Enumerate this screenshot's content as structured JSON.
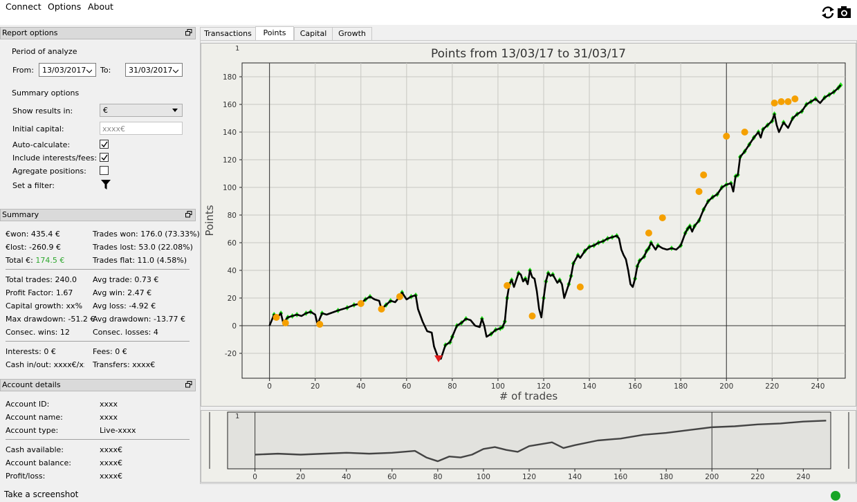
{
  "menu": {
    "connect": "Connect",
    "options": "Options",
    "about": "About"
  },
  "toolbar": {
    "refresh_icon": "refresh-icon",
    "screenshot_icon": "camera-icon"
  },
  "report_options": {
    "title": "Report options",
    "period_label": "Period of analyze",
    "from_label": "From:",
    "from_value": "13/03/2017",
    "to_label": "To:",
    "to_value": "31/03/2017",
    "summary_options_label": "Summary options",
    "show_results_label": "Show results in:",
    "show_results_value": "€",
    "initial_capital_label": "Initial capital:",
    "initial_capital_placeholder": "xxxx€",
    "auto_calculate_label": "Auto-calculate:",
    "auto_calculate_checked": true,
    "include_interests_label": "Include interests/fees:",
    "include_interests_checked": true,
    "aggregate_label": "Agregate positions:",
    "aggregate_checked": false,
    "filter_label": "Set a filter:",
    "filter_icon": "filter-icon"
  },
  "summary": {
    "title": "Summary",
    "won_label": "€won: 435.4 €",
    "lost_label": "€lost: -260.9 €",
    "total_prefix": "Total €:",
    "total_value": "174.5 €",
    "trades_won": "Trades won: 176.0 (73.33%)",
    "trades_lost": "Trades lost: 53.0 (22.08%)",
    "trades_flat": "Trades flat: 11.0 (4.58%)",
    "total_trades": "Total trades: 240.0",
    "avg_trade": "Avg trade: 0.73 €",
    "profit_factor": "Profit Factor: 1.67",
    "avg_win": "Avg win: 2.47 €",
    "capital_growth": "Capital growth: xx%",
    "avg_loss": "Avg loss: -4.92 €",
    "max_drawdown": "Max drawdown: -51.2 €",
    "avg_drawdown": "Avg drawdown: -13.77 €",
    "consec_wins": "Consec. wins: 12",
    "consec_losses": "Consec. losses: 4",
    "interests": "Interests: 0 €",
    "fees": "Fees: 0 €",
    "cash_inout": "Cash in/out: xxxx€/xxx",
    "transfers": "Transfers: xxxx€"
  },
  "account": {
    "title": "Account details",
    "id_label": "Account ID:",
    "id_value": "xxxx",
    "name_label": "Account name:",
    "name_value": "xxxx",
    "type_label": "Account type:",
    "type_value": "Live-xxxx",
    "cash_label": "Cash available:",
    "cash_value": "xxxx€",
    "balance_label": "Account balance:",
    "balance_value": "xxxx€",
    "pl_label": "Profit/loss:",
    "pl_value": "xxxx€"
  },
  "tabs": [
    "Transactions",
    "Points",
    "Capital",
    "Growth"
  ],
  "active_tab": "Points",
  "plot_corner_label": "1",
  "overview_corner_label": "1",
  "status": {
    "text": "Take a screenshot",
    "connection_color": "#18a526"
  },
  "chart_data": {
    "type": "line",
    "title": "Points from 13/03/17 to 31/03/17",
    "xlabel": "# of trades",
    "ylabel": "Points",
    "xlim": [
      -12,
      252
    ],
    "ylim": [
      -38,
      190
    ],
    "xticks": [
      0,
      20,
      40,
      60,
      80,
      100,
      120,
      140,
      160,
      180,
      200,
      220,
      240
    ],
    "yticks": [
      -20,
      0,
      20,
      40,
      60,
      80,
      100,
      120,
      140,
      160,
      180
    ],
    "vlines": [
      0,
      200
    ],
    "grid": true,
    "line_color": "#000000",
    "marker_colors": {
      "win": "#22e01a",
      "loss": "#f5a000",
      "min": "#e01b1b"
    },
    "points": [
      [
        0,
        0
      ],
      [
        2,
        8
      ],
      [
        3,
        5
      ],
      [
        5,
        9
      ],
      [
        6,
        2
      ],
      [
        8,
        6
      ],
      [
        10,
        7
      ],
      [
        12,
        8
      ],
      [
        14,
        7
      ],
      [
        16,
        9
      ],
      [
        18,
        10
      ],
      [
        20,
        8
      ],
      [
        21,
        1
      ],
      [
        23,
        9
      ],
      [
        25,
        8
      ],
      [
        30,
        11
      ],
      [
        34,
        13
      ],
      [
        37,
        15
      ],
      [
        40,
        16
      ],
      [
        42,
        19
      ],
      [
        44,
        21
      ],
      [
        46,
        19
      ],
      [
        48,
        18
      ],
      [
        49,
        12
      ],
      [
        51,
        15
      ],
      [
        53,
        18
      ],
      [
        55,
        17
      ],
      [
        57,
        21
      ],
      [
        58,
        24
      ],
      [
        60,
        19
      ],
      [
        62,
        21
      ],
      [
        64,
        22
      ],
      [
        65,
        12
      ],
      [
        67,
        3
      ],
      [
        69,
        -4
      ],
      [
        71,
        -5
      ],
      [
        72,
        -15
      ],
      [
        74,
        -24
      ],
      [
        75,
        -24
      ],
      [
        77,
        -14
      ],
      [
        79,
        -12
      ],
      [
        80,
        -8
      ],
      [
        82,
        0
      ],
      [
        84,
        2
      ],
      [
        86,
        5
      ],
      [
        88,
        4
      ],
      [
        90,
        0
      ],
      [
        92,
        -1
      ],
      [
        93,
        5
      ],
      [
        94,
        0
      ],
      [
        95,
        -8
      ],
      [
        97,
        -6
      ],
      [
        99,
        -3
      ],
      [
        101,
        -2
      ],
      [
        102,
        -1
      ],
      [
        103,
        3
      ],
      [
        104,
        20
      ],
      [
        105,
        30
      ],
      [
        106,
        33
      ],
      [
        107,
        28
      ],
      [
        109,
        38
      ],
      [
        110,
        37
      ],
      [
        111,
        32
      ],
      [
        112,
        34
      ],
      [
        113,
        30
      ],
      [
        114,
        40
      ],
      [
        115,
        35
      ],
      [
        116,
        34
      ],
      [
        117,
        25
      ],
      [
        118,
        12
      ],
      [
        119,
        6
      ],
      [
        120,
        20
      ],
      [
        121,
        32
      ],
      [
        122,
        38
      ],
      [
        123,
        36
      ],
      [
        124,
        37
      ],
      [
        126,
        31
      ],
      [
        127,
        33
      ],
      [
        128,
        30
      ],
      [
        129,
        20
      ],
      [
        131,
        30
      ],
      [
        132,
        36
      ],
      [
        133,
        45
      ],
      [
        135,
        51
      ],
      [
        136,
        49
      ],
      [
        138,
        54
      ],
      [
        140,
        57
      ],
      [
        142,
        58
      ],
      [
        144,
        60
      ],
      [
        146,
        61
      ],
      [
        148,
        63
      ],
      [
        150,
        64
      ],
      [
        152,
        65
      ],
      [
        153,
        63
      ],
      [
        154,
        55
      ],
      [
        155,
        51
      ],
      [
        156,
        48
      ],
      [
        157,
        40
      ],
      [
        158,
        30
      ],
      [
        159,
        28
      ],
      [
        160,
        34
      ],
      [
        161,
        43
      ],
      [
        162,
        47
      ],
      [
        164,
        50
      ],
      [
        165,
        54
      ],
      [
        166,
        56
      ],
      [
        167,
        60
      ],
      [
        169,
        55
      ],
      [
        170,
        58
      ],
      [
        172,
        56
      ],
      [
        174,
        55
      ],
      [
        176,
        56
      ],
      [
        178,
        55
      ],
      [
        180,
        58
      ],
      [
        182,
        67
      ],
      [
        183,
        70
      ],
      [
        184,
        72
      ],
      [
        185,
        68
      ],
      [
        186,
        72
      ],
      [
        188,
        76
      ],
      [
        190,
        84
      ],
      [
        192,
        90
      ],
      [
        194,
        93
      ],
      [
        196,
        95
      ],
      [
        198,
        100
      ],
      [
        200,
        102
      ],
      [
        202,
        103
      ],
      [
        203,
        97
      ],
      [
        204,
        108
      ],
      [
        205,
        109
      ],
      [
        206,
        122
      ],
      [
        208,
        126
      ],
      [
        210,
        131
      ],
      [
        212,
        136
      ],
      [
        214,
        140
      ],
      [
        215,
        136
      ],
      [
        216,
        142
      ],
      [
        218,
        145
      ],
      [
        220,
        148
      ],
      [
        221,
        153
      ],
      [
        222,
        145
      ],
      [
        223,
        140
      ],
      [
        225,
        147
      ],
      [
        227,
        143
      ],
      [
        229,
        150
      ],
      [
        231,
        153
      ],
      [
        233,
        155
      ],
      [
        235,
        160
      ],
      [
        237,
        162
      ],
      [
        239,
        164
      ],
      [
        241,
        161
      ],
      [
        243,
        165
      ],
      [
        245,
        167
      ],
      [
        247,
        169
      ],
      [
        249,
        172
      ],
      [
        250,
        174
      ]
    ],
    "loss_markers": [
      [
        3,
        6
      ],
      [
        7,
        2
      ],
      [
        22,
        1
      ],
      [
        40,
        16
      ],
      [
        49,
        12
      ],
      [
        57,
        21
      ],
      [
        104,
        29
      ],
      [
        115,
        7
      ],
      [
        136,
        28
      ],
      [
        166,
        67
      ],
      [
        172,
        78
      ],
      [
        188,
        97
      ],
      [
        190,
        109
      ],
      [
        200,
        137
      ],
      [
        208,
        140
      ],
      [
        221,
        161
      ],
      [
        224,
        162
      ],
      [
        227,
        162
      ],
      [
        230,
        164
      ]
    ],
    "min_marker": [
      74,
      -24
    ],
    "overview_points": [
      [
        0,
        -5
      ],
      [
        10,
        -4
      ],
      [
        20,
        -5
      ],
      [
        30,
        -4
      ],
      [
        40,
        -3
      ],
      [
        50,
        -4
      ],
      [
        60,
        -3
      ],
      [
        70,
        -1
      ],
      [
        75,
        -8
      ],
      [
        80,
        -12
      ],
      [
        85,
        -7
      ],
      [
        90,
        -8
      ],
      [
        95,
        -5
      ],
      [
        100,
        1
      ],
      [
        105,
        3
      ],
      [
        110,
        0
      ],
      [
        115,
        -2
      ],
      [
        120,
        4
      ],
      [
        125,
        6
      ],
      [
        130,
        8
      ],
      [
        135,
        2
      ],
      [
        140,
        5
      ],
      [
        150,
        10
      ],
      [
        160,
        12
      ],
      [
        170,
        16
      ],
      [
        180,
        18
      ],
      [
        190,
        21
      ],
      [
        200,
        24
      ],
      [
        210,
        25
      ],
      [
        220,
        27
      ],
      [
        230,
        28
      ],
      [
        240,
        30
      ],
      [
        250,
        31
      ]
    ]
  }
}
